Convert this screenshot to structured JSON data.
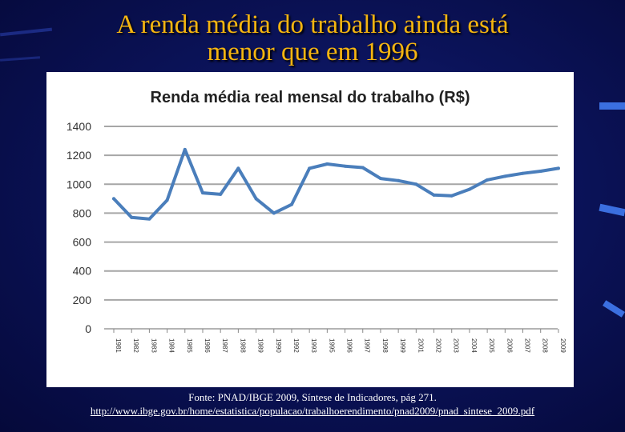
{
  "slide": {
    "title_line1": "A renda média do trabalho ainda está",
    "title_line2": "menor que em 1996",
    "source_line1": "Fonte: PNAD/IBGE 2009, Síntese de Indicadores, pág 271.",
    "source_url": "http://www.ibge.gov.br/home/estatistica/populacao/trabalhoerendimento/pnad2009/pnad_sintese_2009.pdf"
  },
  "chart_data": {
    "type": "line",
    "title": "Renda média real mensal do trabalho (R$)",
    "xlabel": "",
    "ylabel": "",
    "ylim": [
      0,
      1400
    ],
    "yticks": [
      0,
      200,
      400,
      600,
      800,
      1000,
      1200,
      1400
    ],
    "grid": true,
    "legend": "none",
    "line_color": "#4a7ebb",
    "x": [
      "1981",
      "1982",
      "1983",
      "1984",
      "1985",
      "1986",
      "1987",
      "1988",
      "1989",
      "1990",
      "1992",
      "1993",
      "1995",
      "1996",
      "1997",
      "1998",
      "1999",
      "2001",
      "2002",
      "2003",
      "2004",
      "2005",
      "2006",
      "2007",
      "2008",
      "2009"
    ],
    "series": [
      {
        "values": [
          900,
          770,
          760,
          890,
          1240,
          940,
          930,
          1110,
          900,
          800,
          860,
          1110,
          1140,
          1125,
          1115,
          1040,
          1025,
          1000,
          925,
          920,
          965,
          1030,
          1055,
          1075,
          1090,
          1110
        ]
      }
    ]
  }
}
